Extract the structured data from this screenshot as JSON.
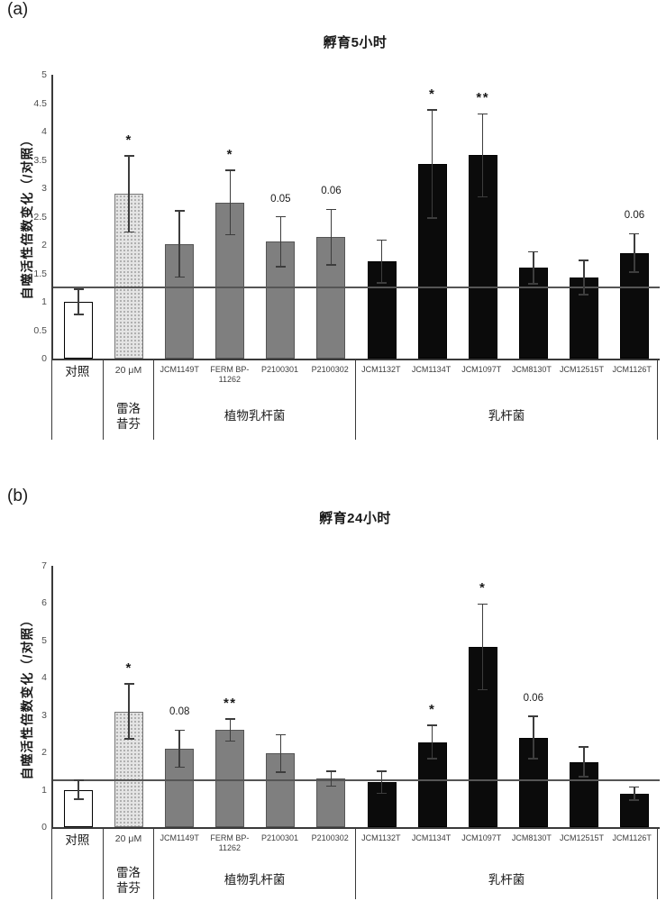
{
  "colors": {
    "background": "#ffffff",
    "control_bar_fill": "#ffffff",
    "raloxifene_bar_fill": "#e4e4e4",
    "raloxifene_bar_dot": "#9f9f9f",
    "plantarum_bar_fill": "#7f7f7f",
    "lactobacillus_bar_fill": "#0b0b0b",
    "axis": "#3a3a3a",
    "error_bar": "#3d3d3d",
    "reference_line": "#555555",
    "text": "#1a1a1a"
  },
  "chart_data": [
    {
      "type": "bar",
      "panel_label": "(a)",
      "title": "孵育5小时",
      "xlabel": "",
      "ylabel": "自噬活性倍数变化（/对照）",
      "ylim": [
        0,
        5
      ],
      "yticks": [
        0,
        0.5,
        1,
        1.5,
        2,
        2.5,
        3,
        3.5,
        4,
        4.5,
        5
      ],
      "reference_line": 1.25,
      "grid": false,
      "legend": "none",
      "error_bars": true,
      "groups": [
        {
          "label": "",
          "bars": [
            {
              "name": "对照",
              "value": 1.0,
              "err": 0.22,
              "style": "control",
              "annotation": ""
            }
          ]
        },
        {
          "label": "雷洛昔芬",
          "bars": [
            {
              "name": "20 μM",
              "value": 2.9,
              "err": 0.67,
              "style": "raloxifene",
              "annotation": "*"
            }
          ]
        },
        {
          "label": "植物乳杆菌",
          "bars": [
            {
              "name": "JCM1149T",
              "value": 2.02,
              "err": 0.58,
              "style": "plantarum",
              "annotation": ""
            },
            {
              "name": "FERM BP-11262",
              "value": 2.75,
              "err": 0.57,
              "style": "plantarum",
              "annotation": "*"
            },
            {
              "name": "P2100301",
              "value": 2.06,
              "err": 0.44,
              "style": "plantarum",
              "annotation": "0.05"
            },
            {
              "name": "P2100302",
              "value": 2.14,
              "err": 0.49,
              "style": "plantarum",
              "annotation": "0.06"
            }
          ]
        },
        {
          "label": "乳杆菌",
          "bars": [
            {
              "name": "JCM1132T",
              "value": 1.71,
              "err": 0.38,
              "style": "lactobacillus",
              "annotation": ""
            },
            {
              "name": "JCM1134T",
              "value": 3.43,
              "err": 0.95,
              "style": "lactobacillus",
              "annotation": "*"
            },
            {
              "name": "JCM1097T",
              "value": 3.58,
              "err": 0.73,
              "style": "lactobacillus",
              "annotation": "**"
            },
            {
              "name": "JCM8130T",
              "value": 1.6,
              "err": 0.28,
              "style": "lactobacillus",
              "annotation": ""
            },
            {
              "name": "JCM12515T",
              "value": 1.43,
              "err": 0.3,
              "style": "lactobacillus",
              "annotation": ""
            },
            {
              "name": "JCM1126T",
              "value": 1.86,
              "err": 0.34,
              "style": "lactobacillus",
              "annotation": "0.06"
            }
          ]
        }
      ]
    },
    {
      "type": "bar",
      "panel_label": "(b)",
      "title": "孵育24小时",
      "xlabel": "",
      "ylabel": "自噬活性倍数变化（/对照）",
      "ylim": [
        0,
        7
      ],
      "yticks": [
        0,
        1,
        2,
        3,
        4,
        5,
        6,
        7
      ],
      "reference_line": 1.25,
      "grid": false,
      "legend": "none",
      "error_bars": true,
      "groups": [
        {
          "label": "",
          "bars": [
            {
              "name": "对照",
              "value": 1.0,
              "err": 0.25,
              "style": "control",
              "annotation": ""
            }
          ]
        },
        {
          "label": "雷洛昔芬",
          "bars": [
            {
              "name": "20 μM",
              "value": 3.1,
              "err": 0.74,
              "style": "raloxifene",
              "annotation": "*"
            }
          ]
        },
        {
          "label": "植物乳杆菌",
          "bars": [
            {
              "name": "JCM1149T",
              "value": 2.1,
              "err": 0.5,
              "style": "plantarum",
              "annotation": "0.08"
            },
            {
              "name": "FERM BP-11262",
              "value": 2.6,
              "err": 0.3,
              "style": "plantarum",
              "annotation": "**"
            },
            {
              "name": "P2100301",
              "value": 1.97,
              "err": 0.5,
              "style": "plantarum",
              "annotation": ""
            },
            {
              "name": "P2100302",
              "value": 1.3,
              "err": 0.2,
              "style": "plantarum",
              "annotation": ""
            }
          ]
        },
        {
          "label": "乳杆菌",
          "bars": [
            {
              "name": "JCM1132T",
              "value": 1.2,
              "err": 0.3,
              "style": "lactobacillus",
              "annotation": ""
            },
            {
              "name": "JCM1134T",
              "value": 2.28,
              "err": 0.45,
              "style": "lactobacillus",
              "annotation": "*"
            },
            {
              "name": "JCM1097T",
              "value": 4.83,
              "err": 1.15,
              "style": "lactobacillus",
              "annotation": "*"
            },
            {
              "name": "JCM8130T",
              "value": 2.4,
              "err": 0.57,
              "style": "lactobacillus",
              "annotation": "0.06"
            },
            {
              "name": "JCM12515T",
              "value": 1.75,
              "err": 0.4,
              "style": "lactobacillus",
              "annotation": ""
            },
            {
              "name": "JCM1126T",
              "value": 0.9,
              "err": 0.17,
              "style": "lactobacillus",
              "annotation": ""
            }
          ]
        }
      ]
    }
  ]
}
